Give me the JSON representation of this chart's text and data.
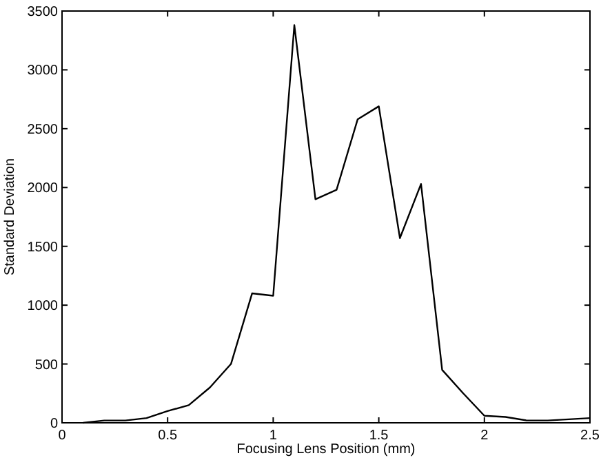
{
  "chart_data": {
    "type": "line",
    "xlabel": "Focusing Lens Position (mm)",
    "ylabel": "Standard Deviation",
    "x": [
      0.1,
      0.2,
      0.3,
      0.4,
      0.5,
      0.6,
      0.7,
      0.8,
      0.9,
      1.0,
      1.1,
      1.2,
      1.3,
      1.4,
      1.5,
      1.6,
      1.7,
      1.8,
      1.9,
      2.0,
      2.1,
      2.2,
      2.3,
      2.4,
      2.5
    ],
    "series": [
      {
        "color": "#000000",
        "values": [
          0,
          20,
          20,
          40,
          100,
          150,
          300,
          500,
          1100,
          1080,
          3380,
          1900,
          1980,
          2580,
          2690,
          1570,
          2030,
          450,
          250,
          60,
          50,
          20,
          20,
          30,
          40
        ]
      }
    ],
    "xlim": [
      0,
      2.5
    ],
    "xticks": [
      0,
      0.5,
      1,
      1.5,
      2,
      2.5
    ],
    "ylim": [
      0,
      3500
    ],
    "yticks": [
      0,
      500,
      1000,
      1500,
      2000,
      2500,
      3000,
      3500
    ],
    "grid": false,
    "marker": "none",
    "line_style": "solid"
  }
}
